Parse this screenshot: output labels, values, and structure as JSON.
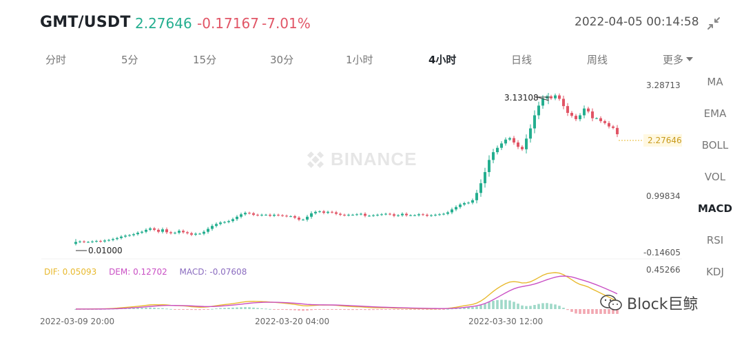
{
  "header": {
    "pair": "GMT/USDT",
    "price": "2.27646",
    "change": "-0.17167",
    "change_pct": "-7.01%",
    "timestamp": "2022-04-05 00:14:58"
  },
  "tabs": [
    "分时",
    "5分",
    "15分",
    "30分",
    "1小时",
    "4小时",
    "日线",
    "周线",
    "更多"
  ],
  "active_tab": "4小时",
  "indicators": [
    "MA",
    "EMA",
    "BOLL",
    "VOL",
    "MACD",
    "RSI",
    "KDJ"
  ],
  "active_indicator": "MACD",
  "price_axis": {
    "top": "3.28713",
    "mid": "0.99834",
    "bottom": "-0.14605",
    "current": "2.27646"
  },
  "annotations": {
    "high": "3.13108",
    "low": "0.01000"
  },
  "macd_axis": {
    "top": "0.45266"
  },
  "macd_legend": {
    "dif": "DIF: 0.05093",
    "dem": "DEM: 0.12702",
    "macd": "MACD: -0.07608"
  },
  "x_labels": [
    "2022-03-09 20:00",
    "2022-03-20 04:00",
    "2022-03-30 12:00"
  ],
  "watermark": "BINANCE",
  "footer_watermark": "Block巨鲸",
  "colors": {
    "up": "#24ae8f",
    "down": "#e15566",
    "dif": "#e8b92d",
    "dem": "#c94fc4",
    "macd": "#8a6bbf"
  },
  "chart_data": {
    "type": "candlestick",
    "ylim": [
      -0.14605,
      3.28713
    ],
    "close_series": [
      0.06,
      0.07,
      0.06,
      0.06,
      0.07,
      0.08,
      0.07,
      0.09,
      0.1,
      0.12,
      0.14,
      0.17,
      0.19,
      0.2,
      0.22,
      0.25,
      0.27,
      0.31,
      0.34,
      0.31,
      0.27,
      0.32,
      0.26,
      0.24,
      0.25,
      0.29,
      0.26,
      0.24,
      0.21,
      0.23,
      0.23,
      0.27,
      0.33,
      0.39,
      0.43,
      0.46,
      0.47,
      0.49,
      0.53,
      0.58,
      0.63,
      0.66,
      0.65,
      0.62,
      0.61,
      0.62,
      0.62,
      0.6,
      0.62,
      0.61,
      0.6,
      0.59,
      0.59,
      0.56,
      0.52,
      0.52,
      0.58,
      0.65,
      0.68,
      0.69,
      0.66,
      0.68,
      0.67,
      0.64,
      0.62,
      0.61,
      0.62,
      0.62,
      0.63,
      0.64,
      0.6,
      0.6,
      0.61,
      0.62,
      0.63,
      0.64,
      0.63,
      0.6,
      0.61,
      0.64,
      0.61,
      0.61,
      0.61,
      0.63,
      0.62,
      0.6,
      0.61,
      0.62,
      0.63,
      0.64,
      0.67,
      0.73,
      0.78,
      0.83,
      0.86,
      0.87,
      0.92,
      1.07,
      1.27,
      1.5,
      1.75,
      1.91,
      2.0,
      2.09,
      2.17,
      2.2,
      2.11,
      2.02,
      1.97,
      2.19,
      2.4,
      2.67,
      2.87,
      3.02,
      3.06,
      3.02,
      3.08,
      3.01,
      2.86,
      2.72,
      2.66,
      2.59,
      2.67,
      2.81,
      2.75,
      2.61,
      2.61,
      2.55,
      2.51,
      2.44,
      2.41,
      2.28
    ],
    "high": 3.13108,
    "low": 0.01,
    "last": 2.27646
  }
}
